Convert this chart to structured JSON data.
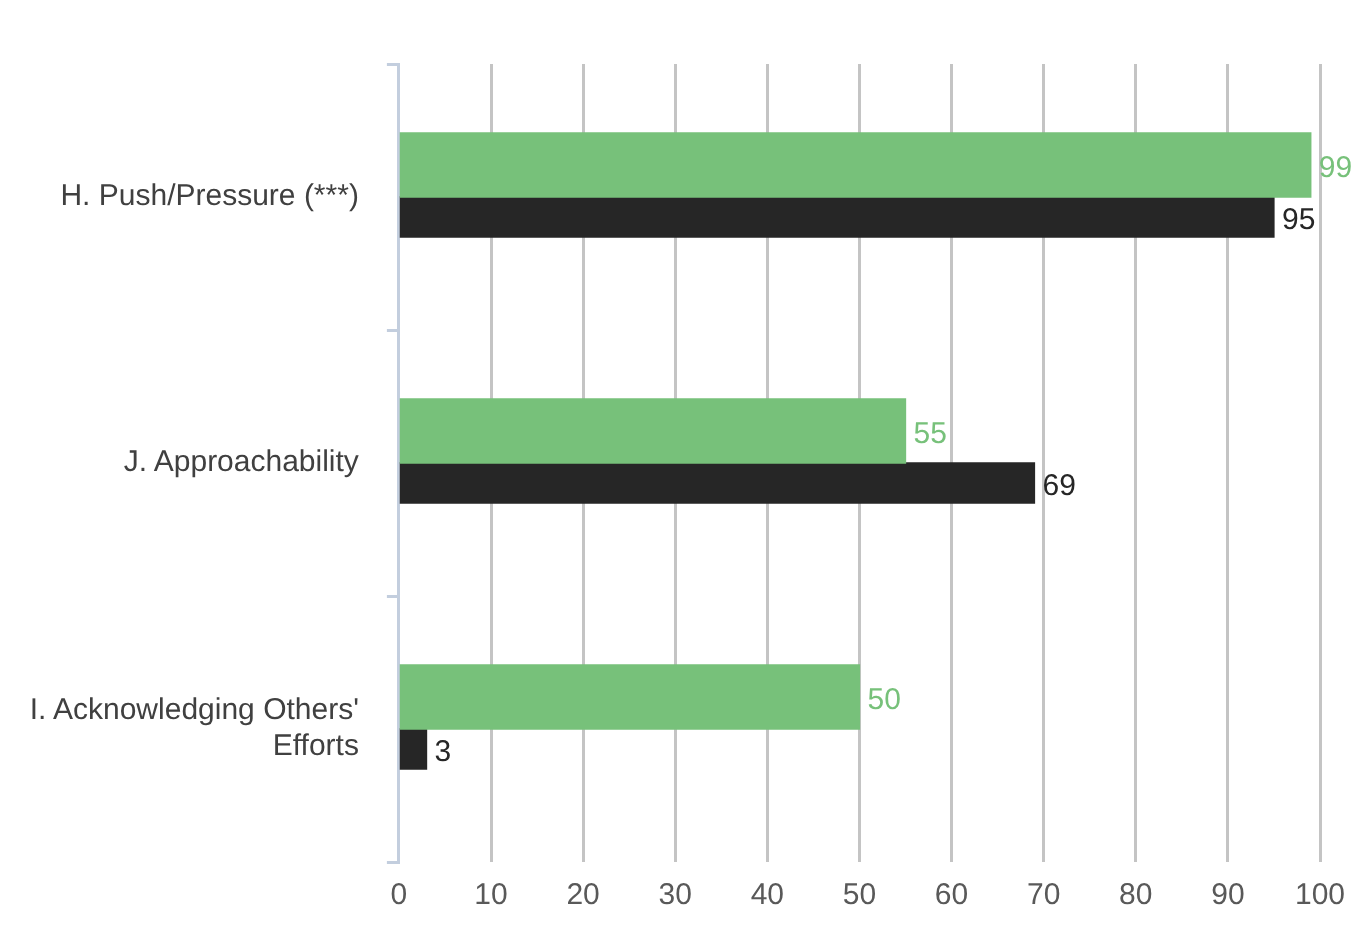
{
  "chart_data": {
    "type": "bar",
    "orientation": "horizontal",
    "categories": [
      "H. Push/Pressure (***)",
      "J. Approachability",
      "I. Acknowledging Others' Efforts"
    ],
    "series": [
      {
        "color": "#77c17a",
        "values": [
          99,
          55,
          50
        ]
      },
      {
        "color": "#262626",
        "values": [
          95,
          69,
          3
        ]
      }
    ],
    "xlim": [
      0,
      100
    ],
    "xticks": [
      0,
      10,
      20,
      30,
      40,
      50,
      60,
      70,
      80,
      90,
      100
    ],
    "grid": "x",
    "legend": false,
    "data_labels": true
  }
}
